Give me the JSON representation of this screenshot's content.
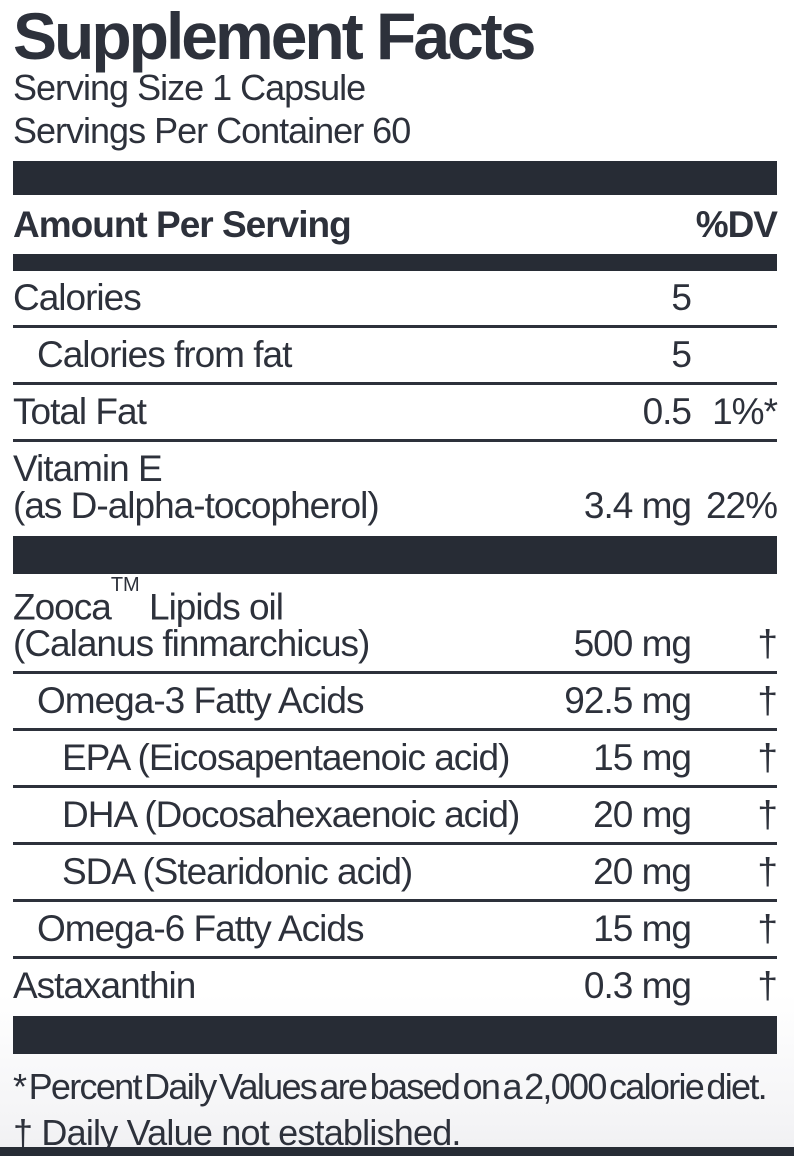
{
  "colors": {
    "ink": "#2d313b",
    "bar": "#272c35",
    "background": "#ffffff"
  },
  "title": "Supplement Facts",
  "serving": {
    "size": "Serving Size 1 Capsule",
    "per_container": "Servings Per Container 60"
  },
  "header": {
    "amount": "Amount Per Serving",
    "dv": "%DV"
  },
  "rows": [
    {
      "name": "Calories",
      "amount": "5",
      "dv": ""
    },
    {
      "name": "Calories from fat",
      "amount": "5",
      "dv": ""
    },
    {
      "name": "Total Fat",
      "amount": "0.5",
      "dv": "1%*"
    },
    {
      "name": "Vitamin E",
      "name2": "(as D-alpha-tocopherol)",
      "amount": "3.4 mg",
      "dv": "22%"
    },
    {
      "brand": "Zooca",
      "tm": "TM",
      "name_rest": " Lipids oil",
      "name2": "(Calanus finmarchicus)",
      "amount": "500 mg",
      "dv": "†"
    },
    {
      "name": "Omega-3 Fatty Acids",
      "amount": "92.5 mg",
      "dv": "†"
    },
    {
      "name": "EPA (Eicosapentaenoic acid)",
      "amount": "15 mg",
      "dv": "†"
    },
    {
      "name": "DHA (Docosahexaenoic acid)",
      "amount": "20 mg",
      "dv": "†"
    },
    {
      "name": "SDA (Stearidonic acid)",
      "amount": "20 mg",
      "dv": "†"
    },
    {
      "name": "Omega-6 Fatty Acids",
      "amount": "15 mg",
      "dv": "†"
    },
    {
      "name": "Astaxanthin",
      "amount": "0.3 mg",
      "dv": "†"
    }
  ],
  "footnotes": [
    "* Percent Daily Values are based on a 2,000 calorie diet.",
    "† Daily Value not established."
  ]
}
